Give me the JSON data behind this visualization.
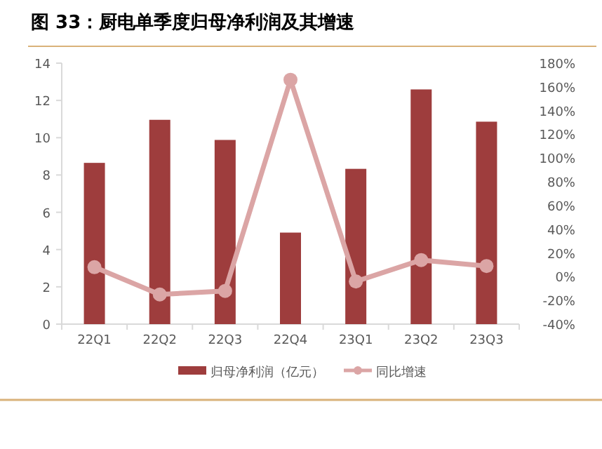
{
  "chart_data": {
    "type": "bar",
    "title": "图 33：厨电单季度归母净利润及其增速",
    "categories": [
      "22Q1",
      "22Q2",
      "22Q3",
      "22Q4",
      "23Q1",
      "23Q2",
      "23Q3"
    ],
    "series": [
      {
        "name": "归母净利润（亿元）",
        "color": "#9e3d3d",
        "values": [
          8.65,
          10.96,
          9.88,
          4.91,
          8.33,
          12.59,
          10.86
        ]
      },
      {
        "name": "同比增速",
        "type": "line",
        "axis": "y2",
        "color": "#dba5a5",
        "marker": "circle",
        "values": [
          8,
          -15,
          -12,
          166,
          -4,
          14,
          9
        ]
      }
    ],
    "ylim": [
      0,
      14
    ],
    "yticks": [
      0,
      2,
      4,
      6,
      8,
      10,
      12,
      14
    ],
    "y2lim": [
      -40,
      180
    ],
    "y2ticks": [
      {
        "value": -40,
        "label": "-40%"
      },
      {
        "value": -20,
        "label": "-20%"
      },
      {
        "value": 0,
        "label": "0%"
      },
      {
        "value": 20,
        "label": "20%"
      },
      {
        "value": 40,
        "label": "40%"
      },
      {
        "value": 60,
        "label": "60%"
      },
      {
        "value": 80,
        "label": "80%"
      },
      {
        "value": 100,
        "label": "100%"
      },
      {
        "value": 120,
        "label": "120%"
      },
      {
        "value": 140,
        "label": "140%"
      },
      {
        "value": 160,
        "label": "160%"
      },
      {
        "value": 180,
        "label": "180%"
      }
    ],
    "legend": "bottom"
  }
}
